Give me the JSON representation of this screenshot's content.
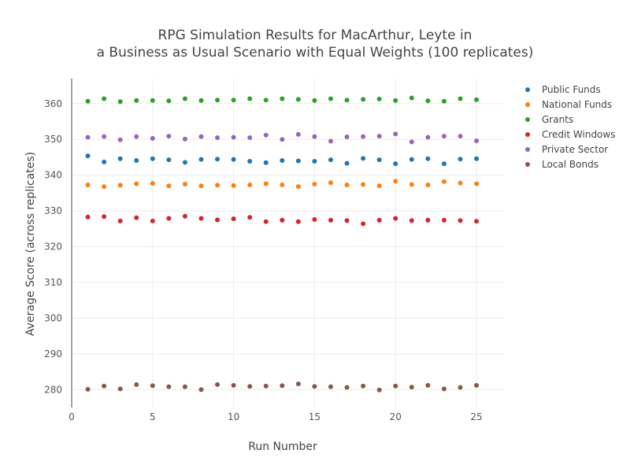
{
  "chart_data": {
    "type": "scatter",
    "title_lines": [
      "RPG Simulation Results for MacArthur, Leyte in",
      "a Business as Usual Scenario with Equal Weights (100 replicates)"
    ],
    "xlabel": "Run Number",
    "ylabel": "Average Score (across replicates)",
    "xlim": [
      0,
      26.7
    ],
    "ylim": [
      275,
      367
    ],
    "x_ticks": [
      0,
      5,
      10,
      15,
      20,
      25
    ],
    "y_ticks": [
      280,
      290,
      300,
      310,
      320,
      330,
      340,
      350,
      360
    ],
    "grid": true,
    "legend_position": "top-right",
    "x": [
      1,
      2,
      3,
      4,
      5,
      6,
      7,
      8,
      9,
      10,
      11,
      12,
      13,
      14,
      15,
      16,
      17,
      18,
      19,
      20,
      21,
      22,
      23,
      24,
      25
    ],
    "series": [
      {
        "name": "Public Funds",
        "color": "#1f77b4",
        "values": [
          345.4,
          343.7,
          344.6,
          344.1,
          344.6,
          344.3,
          343.6,
          344.4,
          344.5,
          344.4,
          343.9,
          343.5,
          344.1,
          344.0,
          343.9,
          344.3,
          343.3,
          344.7,
          344.3,
          343.2,
          344.4,
          344.6,
          343.2,
          344.5,
          344.6
        ]
      },
      {
        "name": "National Funds",
        "color": "#ff7f0e",
        "values": [
          337.3,
          336.8,
          337.2,
          337.6,
          337.7,
          337.0,
          337.5,
          337.0,
          337.2,
          337.1,
          337.3,
          337.6,
          337.3,
          336.8,
          337.5,
          337.9,
          337.3,
          337.4,
          337.0,
          338.3,
          337.4,
          337.3,
          338.2,
          337.8,
          337.6
        ]
      },
      {
        "name": "Grants",
        "color": "#2ca02c",
        "values": [
          360.7,
          361.4,
          360.6,
          360.9,
          360.9,
          360.8,
          361.4,
          360.9,
          361.0,
          361.0,
          361.4,
          361.0,
          361.4,
          361.2,
          360.9,
          361.4,
          361.0,
          361.2,
          361.3,
          360.9,
          361.6,
          360.8,
          360.7,
          361.4,
          361.1
        ]
      },
      {
        "name": "Credit Windows",
        "color": "#d62728",
        "values": [
          328.3,
          328.4,
          327.2,
          328.1,
          327.2,
          327.9,
          328.5,
          327.9,
          327.5,
          327.8,
          328.2,
          327.0,
          327.4,
          327.0,
          327.6,
          327.4,
          327.3,
          326.4,
          327.4,
          327.9,
          327.3,
          327.4,
          327.4,
          327.3,
          327.1
        ]
      },
      {
        "name": "Private Sector",
        "color": "#9467bd",
        "values": [
          350.6,
          350.8,
          349.9,
          350.8,
          350.3,
          350.9,
          350.1,
          350.8,
          350.5,
          350.6,
          350.5,
          351.2,
          350.0,
          351.4,
          350.8,
          349.5,
          350.7,
          350.8,
          350.9,
          351.5,
          349.3,
          350.6,
          350.9,
          350.9,
          349.6
        ]
      },
      {
        "name": "Local Bonds",
        "color": "#8c564b",
        "values": [
          280.1,
          281.0,
          280.2,
          281.4,
          281.1,
          280.8,
          280.8,
          280.0,
          281.4,
          281.2,
          280.9,
          281.0,
          281.1,
          281.6,
          280.9,
          280.8,
          280.6,
          281.0,
          279.9,
          281.0,
          280.7,
          281.2,
          280.2,
          280.6,
          281.2
        ]
      }
    ]
  }
}
